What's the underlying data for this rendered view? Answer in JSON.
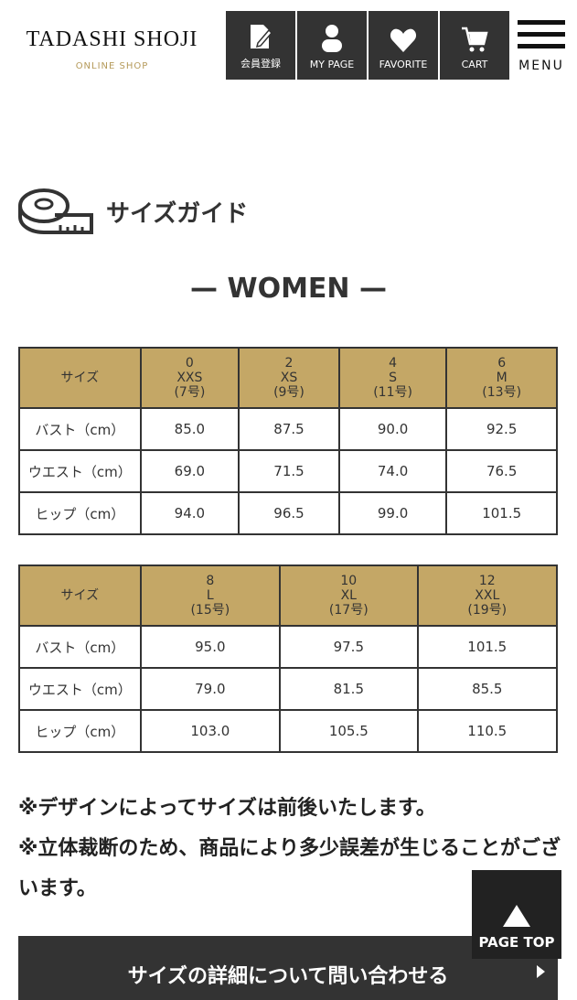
{
  "header": {
    "logo": "TADASHI SHOJI",
    "logo_sub": "ONLINE SHOP",
    "nav": [
      {
        "label": "会員登録",
        "icon": "register-icon"
      },
      {
        "label": "MY PAGE",
        "icon": "user-icon"
      },
      {
        "label": "FAVORITE",
        "icon": "heart-icon"
      },
      {
        "label": "CART",
        "icon": "cart-icon"
      }
    ],
    "menu_label": "MENU"
  },
  "page_title": "サイズガイド",
  "section": "— WOMEN —",
  "header_color": "#c4a766",
  "tables": [
    {
      "headers": [
        "サイズ",
        "0\nXXS\n(7号)",
        "2\nXS\n(9号)",
        "4\nS\n(11号)",
        "6\nM\n(13号)"
      ],
      "rows": [
        [
          "バスト（cm）",
          "85.0",
          "87.5",
          "90.0",
          "92.5"
        ],
        [
          "ウエスト（cm）",
          "69.0",
          "71.5",
          "74.0",
          "76.5"
        ],
        [
          "ヒップ（cm）",
          "94.0",
          "96.5",
          "99.0",
          "101.5"
        ]
      ]
    },
    {
      "headers": [
        "サイズ",
        "8\nL\n(15号)",
        "10\nXL\n(17号)",
        "12\nXXL\n(19号)"
      ],
      "rows": [
        [
          "バスト（cm）",
          "95.0",
          "97.5",
          "101.5"
        ],
        [
          "ウエスト（cm）",
          "79.0",
          "81.5",
          "85.5"
        ],
        [
          "ヒップ（cm）",
          "103.0",
          "105.5",
          "110.5"
        ]
      ]
    }
  ],
  "notes": [
    "※デザインによってサイズは前後いたします。",
    "※立体裁断のため、商品により多少誤差が生じることがございます。"
  ],
  "cta_label": "サイズの詳細について問い合わせる",
  "page_top_label": "PAGE TOP"
}
